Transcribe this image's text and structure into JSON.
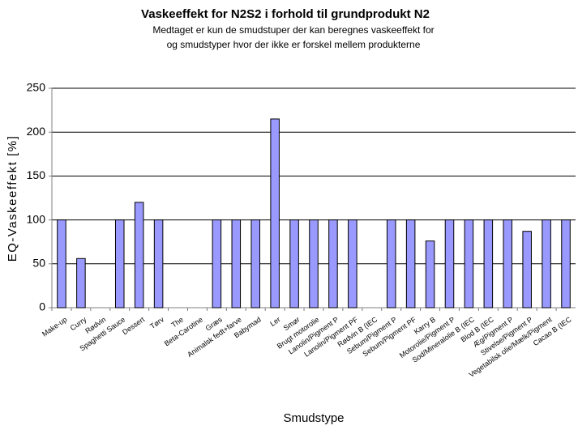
{
  "chart_data": {
    "type": "bar",
    "title": "Vaskeeffekt for N2S2 i forhold til grundprodukt N2",
    "subtitle": [
      "Medtaget er kun de smudstuper der kan beregnes vaskeeffekt for",
      "og smudstyper hvor der ikke er forskel mellem produkterne"
    ],
    "y_label": "EQ-Vaskeeffekt [%]",
    "x_label": "Smudstype",
    "categories": [
      "Make-up",
      "Curry",
      "Rødvin",
      "Spaghetti Sauce",
      "Dessert",
      "Tørv",
      "The",
      "Beta-Carotine",
      "Græs",
      "Animalsk fedt+farve",
      "Babymad",
      "Ler",
      "Smør",
      "Brugt motorolie",
      "Lanolin/Pigment P",
      "Lanolin/Pigment PF",
      "Rødvin B (IEC",
      "Sebum/Pigment P",
      "Sebum/Pigment PF",
      "Karry B",
      "Motorolie/Pigment P",
      "Sod/Mineralolie B (IEC",
      "Blod B (IEC",
      "Æg/Pigment P",
      "Stivelse/Pigment P",
      "Vegetabilsk olie/Mælk/Pigment",
      "Cacao B (IEC"
    ],
    "values": [
      100,
      56,
      null,
      100,
      120,
      100,
      null,
      null,
      100,
      100,
      100,
      215,
      100,
      100,
      100,
      100,
      null,
      100,
      100,
      76,
      100,
      100,
      100,
      100,
      87,
      100,
      100
    ],
    "color": "#9999ff",
    "ylim": [
      0,
      250
    ],
    "yticks": [
      0,
      50,
      100,
      150,
      200,
      250
    ],
    "grid": true
  }
}
